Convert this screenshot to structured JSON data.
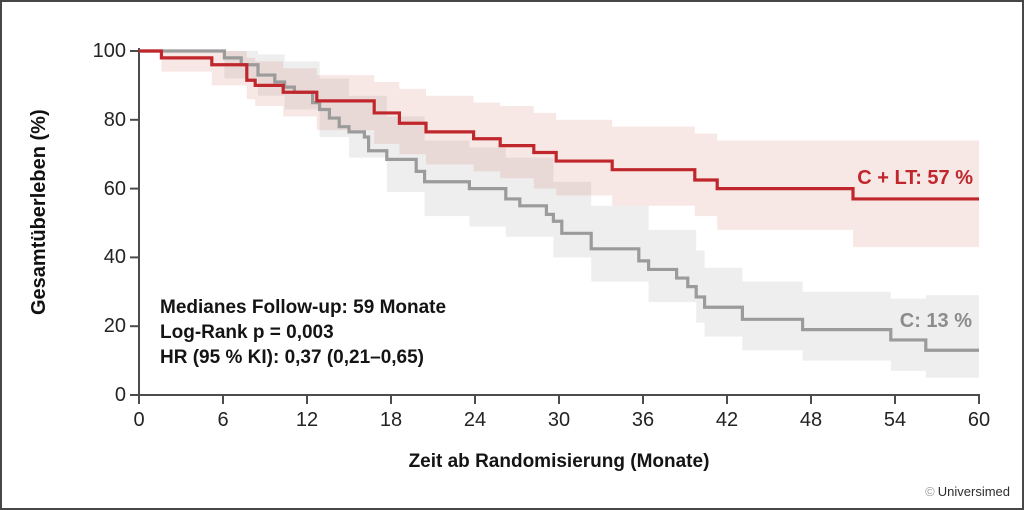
{
  "frame": {
    "border_color": "#474747",
    "background": "#ffffff"
  },
  "chart_data": {
    "type": "line",
    "variant": "kaplan_meier_step_with_ci_bands",
    "title": "",
    "xlabel": "Zeit ab Randomisierung (Monate)",
    "ylabel": "Gesamtüberleben (%)",
    "xlim": [
      0,
      60
    ],
    "ylim": [
      0,
      100
    ],
    "x_ticks": [
      0,
      6,
      12,
      18,
      24,
      30,
      36,
      42,
      48,
      54,
      60
    ],
    "y_ticks": [
      0,
      20,
      40,
      60,
      80,
      100
    ],
    "grid": false,
    "legend_position": "end-of-curve-labels",
    "axis_color": "#4c4c4c",
    "tick_label_color": "#242424",
    "series": [
      {
        "name": "C + LT",
        "end_label": "C + LT: 57 %",
        "final_value_pct": 57,
        "color": "#c0272d",
        "label_color": "#c0272d",
        "band_color": "rgba(195,75,55,0.13)",
        "steps": [
          [
            0,
            100
          ],
          [
            1.6,
            98
          ],
          [
            5.2,
            96
          ],
          [
            7.7,
            91.5
          ],
          [
            8.3,
            90
          ],
          [
            10.3,
            88
          ],
          [
            12.7,
            85.5
          ],
          [
            16.8,
            82
          ],
          [
            18.6,
            79
          ],
          [
            20.5,
            76.5
          ],
          [
            23.9,
            74.5
          ],
          [
            25.8,
            72.5
          ],
          [
            28.2,
            70.5
          ],
          [
            29.8,
            68
          ],
          [
            33.8,
            65.5
          ],
          [
            39.7,
            62.5
          ],
          [
            41.3,
            60
          ],
          [
            51,
            57
          ],
          [
            60,
            57
          ]
        ],
        "ci_band": [
          [
            1.6,
            94,
            100
          ],
          [
            5.2,
            90,
            100
          ],
          [
            7.7,
            86,
            98
          ],
          [
            8.3,
            84,
            97
          ],
          [
            10.3,
            81,
            95
          ],
          [
            12.7,
            77,
            93
          ],
          [
            16.8,
            73,
            91
          ],
          [
            18.6,
            70,
            89
          ],
          [
            20.5,
            67,
            87
          ],
          [
            23.9,
            65,
            85
          ],
          [
            25.8,
            63,
            84
          ],
          [
            28.2,
            60,
            82
          ],
          [
            29.8,
            58,
            80
          ],
          [
            33.8,
            55,
            78
          ],
          [
            39.7,
            52,
            76
          ],
          [
            41.3,
            48,
            74
          ],
          [
            51,
            43,
            74
          ],
          [
            60,
            43,
            74
          ]
        ]
      },
      {
        "name": "C",
        "end_label": "C: 13 %",
        "final_value_pct": 13,
        "color": "#9b9b9b",
        "label_color": "#8c8c8c",
        "band_color": "rgba(150,150,150,0.16)",
        "steps": [
          [
            0,
            100
          ],
          [
            6.1,
            98
          ],
          [
            7.3,
            96
          ],
          [
            8.5,
            93
          ],
          [
            9.7,
            91
          ],
          [
            10.4,
            89.5
          ],
          [
            11.1,
            88
          ],
          [
            12.4,
            85
          ],
          [
            12.9,
            83
          ],
          [
            13.6,
            80.5
          ],
          [
            14.3,
            78
          ],
          [
            15,
            76.5
          ],
          [
            16.1,
            75
          ],
          [
            16.4,
            71
          ],
          [
            17.7,
            68.5
          ],
          [
            19.8,
            65
          ],
          [
            20.4,
            62
          ],
          [
            23.6,
            60
          ],
          [
            26.2,
            57
          ],
          [
            27.2,
            55
          ],
          [
            29.1,
            52.5
          ],
          [
            29.6,
            50.5
          ],
          [
            30.2,
            47
          ],
          [
            32.3,
            42.5
          ],
          [
            35.7,
            39
          ],
          [
            36.4,
            36.5
          ],
          [
            38.4,
            34
          ],
          [
            39.2,
            31.5
          ],
          [
            39.8,
            28.5
          ],
          [
            40.4,
            25.5
          ],
          [
            43.1,
            22
          ],
          [
            47.4,
            19
          ],
          [
            53.7,
            16
          ],
          [
            56.2,
            13
          ],
          [
            60,
            13
          ]
        ],
        "ci_band": [
          [
            6.1,
            92,
            100
          ],
          [
            8.5,
            87,
            99
          ],
          [
            10.4,
            83,
            97
          ],
          [
            12.9,
            75,
            92
          ],
          [
            15,
            69,
            87
          ],
          [
            17.7,
            59,
            81
          ],
          [
            20.4,
            52,
            74
          ],
          [
            23.6,
            49,
            72
          ],
          [
            26.2,
            46,
            69
          ],
          [
            29.6,
            40,
            62
          ],
          [
            32.3,
            33,
            55
          ],
          [
            36.4,
            27,
            48
          ],
          [
            39.8,
            21,
            42
          ],
          [
            40.4,
            17,
            37
          ],
          [
            43.1,
            13,
            33
          ],
          [
            47.4,
            10,
            30
          ],
          [
            53.7,
            7,
            28
          ],
          [
            56.2,
            5,
            29
          ],
          [
            60,
            5,
            29
          ]
        ]
      }
    ],
    "annotations": [
      "Medianes Follow-up: 59 Monate",
      "Log-Rank p = 0,003",
      "HR (95 % KI): 0,37 (0,21–0,65)"
    ]
  },
  "stats": {
    "lines": [
      "Medianes Follow-up: 59 Monate",
      "Log-Rank p = 0,003",
      "HR (95 % KI): 0,37 (0,21–0,65)"
    ]
  },
  "copyright": {
    "symbol": "©",
    "name": "Universimed"
  }
}
